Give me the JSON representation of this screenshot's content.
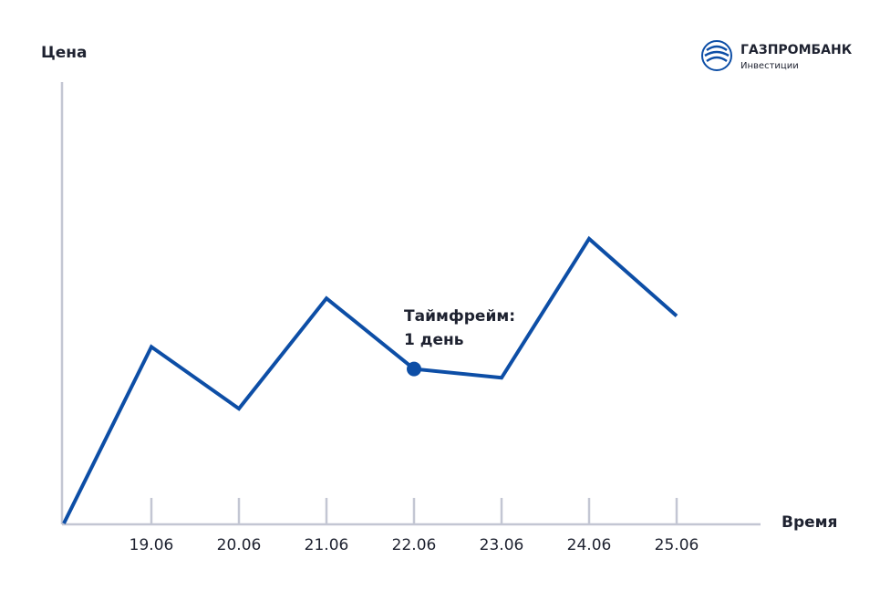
{
  "chart_data": {
    "type": "line",
    "y_label": "Цена",
    "x_label": "Время",
    "categories": [
      null,
      "19.06",
      "20.06",
      "21.06",
      "22.06",
      "23.06",
      "24.06",
      "25.06"
    ],
    "values": [
      0,
      40,
      26,
      51,
      35,
      33,
      64.5,
      47
    ],
    "color": "#0d4ea6",
    "ylim": [
      0,
      100
    ],
    "annotation": {
      "lines": [
        "Таймфрейм:",
        "1 день"
      ],
      "category": "22.06"
    }
  },
  "logo": {
    "name": "ГАЗПРОМБАНК",
    "subtitle": "Инвестиции"
  }
}
